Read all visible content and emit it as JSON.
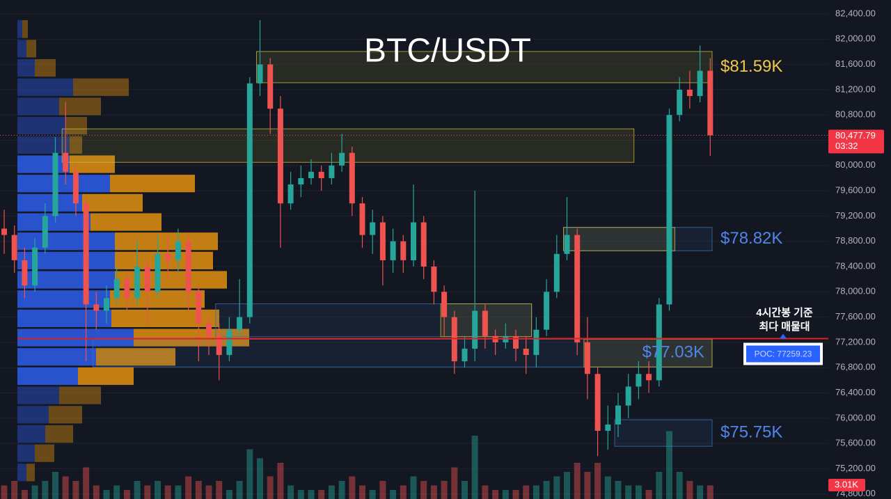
{
  "chart_data": {
    "type": "candlestick",
    "title": "BTC/USDT",
    "ohlc": [
      [
        79000,
        79300,
        78600,
        78900
      ],
      [
        78900,
        79050,
        78300,
        78500
      ],
      [
        78500,
        78700,
        77900,
        78100
      ],
      [
        78100,
        78850,
        78000,
        78700
      ],
      [
        78700,
        79400,
        78600,
        79200
      ],
      [
        79200,
        80450,
        79100,
        80200
      ],
      [
        80200,
        81000,
        79700,
        79900
      ],
      [
        79900,
        80000,
        79200,
        79400
      ],
      [
        79400,
        79500,
        76900,
        77800
      ],
      [
        77800,
        78000,
        77400,
        77700
      ],
      [
        77700,
        78100,
        77500,
        77900
      ],
      [
        77900,
        78400,
        77800,
        78200
      ],
      [
        78200,
        78300,
        77700,
        77900
      ],
      [
        77900,
        78800,
        77800,
        78400
      ],
      [
        78400,
        78500,
        77500,
        78000
      ],
      [
        78000,
        78900,
        77900,
        78600
      ],
      [
        78600,
        78900,
        78200,
        78500
      ],
      [
        78500,
        79000,
        78300,
        78800
      ],
      [
        78800,
        78900,
        77700,
        78000
      ],
      [
        78000,
        78100,
        76900,
        77500
      ],
      [
        77500,
        77600,
        77000,
        77300
      ],
      [
        77300,
        77500,
        76600,
        77000
      ],
      [
        77000,
        77600,
        76900,
        77400
      ],
      [
        77400,
        78200,
        77300,
        77600
      ],
      [
        77600,
        81400,
        77500,
        81300
      ],
      [
        81300,
        82300,
        81100,
        81600
      ],
      [
        81600,
        81700,
        80500,
        80900
      ],
      [
        80900,
        81100,
        78700,
        79400
      ],
      [
        79400,
        79900,
        79300,
        79700
      ],
      [
        79700,
        80000,
        79500,
        79800
      ],
      [
        79800,
        80100,
        79700,
        79900
      ],
      [
        79900,
        80000,
        79600,
        79800
      ],
      [
        79800,
        80200,
        79700,
        80000
      ],
      [
        80000,
        80500,
        79900,
        80200
      ],
      [
        80200,
        80300,
        79200,
        79400
      ],
      [
        79400,
        79500,
        78700,
        78900
      ],
      [
        78900,
        79300,
        78600,
        79100
      ],
      [
        79100,
        79200,
        78100,
        78500
      ],
      [
        78500,
        79000,
        78300,
        78800
      ],
      [
        78800,
        78900,
        78300,
        78500
      ],
      [
        78500,
        79700,
        78400,
        79100
      ],
      [
        79100,
        79200,
        78200,
        78400
      ],
      [
        78400,
        78500,
        77800,
        78000
      ],
      [
        78000,
        78100,
        77300,
        77600
      ],
      [
        77600,
        77700,
        76700,
        76900
      ],
      [
        76900,
        77300,
        76800,
        77100
      ],
      [
        77100,
        79600,
        76900,
        77700
      ],
      [
        77700,
        77800,
        77100,
        77300
      ],
      [
        77300,
        77400,
        77000,
        77200
      ],
      [
        77200,
        77500,
        77100,
        77300
      ],
      [
        77300,
        77400,
        76900,
        77100
      ],
      [
        77100,
        77300,
        76700,
        77000
      ],
      [
        77000,
        77600,
        76800,
        77400
      ],
      [
        77400,
        78200,
        77300,
        78000
      ],
      [
        78000,
        78900,
        77900,
        78600
      ],
      [
        78600,
        79500,
        78500,
        78900
      ],
      [
        78900,
        79000,
        77000,
        77200
      ],
      [
        77200,
        77600,
        76300,
        76700
      ],
      [
        76700,
        76800,
        75400,
        75800
      ],
      [
        75800,
        76200,
        75500,
        75900
      ],
      [
        75900,
        76400,
        75700,
        76200
      ],
      [
        76200,
        76700,
        76000,
        76500
      ],
      [
        76500,
        76900,
        76300,
        76700
      ],
      [
        76700,
        76900,
        76400,
        76600
      ],
      [
        76600,
        77900,
        76500,
        77800
      ],
      [
        77800,
        80900,
        77700,
        80800
      ],
      [
        80800,
        81400,
        80700,
        81200
      ],
      [
        81200,
        81500,
        80900,
        81100
      ],
      [
        81100,
        81900,
        81000,
        81500
      ],
      [
        81500,
        81700,
        80150,
        80477.79
      ]
    ],
    "volume": [
      3,
      4,
      2,
      3,
      4,
      6,
      5,
      4,
      7,
      3,
      2,
      3,
      2,
      4,
      3,
      4,
      3,
      3,
      5,
      4,
      3,
      4,
      2,
      4,
      11,
      9,
      5,
      8,
      3,
      2,
      2,
      2,
      3,
      4,
      5,
      3,
      2,
      4,
      2,
      3,
      5,
      4,
      3,
      4,
      7,
      4,
      14,
      3,
      2,
      2,
      2,
      3,
      3,
      4,
      5,
      6,
      8,
      6,
      8,
      5,
      4,
      3,
      3,
      2,
      6,
      15,
      6,
      4,
      3,
      3.01
    ],
    "last_volume_label": "3.01K",
    "last_price_label": "80,477.79",
    "countdown": "03:32",
    "vlim": [
      0,
      20
    ],
    "ylim": [
      74720,
      82620
    ],
    "yticks": [
      {
        "value": 82400,
        "label": "82,400.00"
      },
      {
        "value": 82000,
        "label": "82,000.00"
      },
      {
        "value": 81600,
        "label": "81,600.00"
      },
      {
        "value": 81200,
        "label": "81,200.00"
      },
      {
        "value": 80800,
        "label": "80,800.00"
      },
      {
        "value": 80400,
        "label": "80,400.00"
      },
      {
        "value": 80000,
        "label": "80,000.00"
      },
      {
        "value": 79600,
        "label": "79,600.00"
      },
      {
        "value": 79200,
        "label": "79,200.00"
      },
      {
        "value": 78800,
        "label": "78,800.00"
      },
      {
        "value": 78400,
        "label": "78,400.00"
      },
      {
        "value": 78000,
        "label": "78,000.00"
      },
      {
        "value": 77600,
        "label": "77,600.00"
      },
      {
        "value": 77200,
        "label": "77,200.00"
      },
      {
        "value": 76800,
        "label": "76,800.00"
      },
      {
        "value": 76400,
        "label": "76,400.00"
      },
      {
        "value": 76000,
        "label": "76,000.00"
      },
      {
        "value": 75600,
        "label": "75,600.00"
      },
      {
        "value": 75200,
        "label": "75,200.00"
      },
      {
        "value": 74800,
        "label": "74,800.00"
      }
    ],
    "grid": true,
    "up_color": "#26a69a",
    "down_color": "#ef5350",
    "zones": [
      {
        "low": 81310,
        "high": 81805,
        "from": 25,
        "to": 69,
        "color": "#c9b43c",
        "label": "$81.59K"
      },
      {
        "low": 80050,
        "high": 80580,
        "from": 6,
        "to": 61,
        "color": "#c9b43c"
      },
      {
        "low": 78650,
        "high": 79020,
        "from": 55,
        "to": 69,
        "color": "#3d6fb0",
        "label": "$78.82K"
      },
      {
        "low": 78650,
        "high": 79020,
        "from": 55,
        "to": 65,
        "color": "#c9b43c"
      },
      {
        "low": 77290,
        "high": 77810,
        "from": 21,
        "to": 51,
        "color": "#3d6fb0"
      },
      {
        "low": 77290,
        "high": 77810,
        "from": 43,
        "to": 51,
        "color": "#c9b43c"
      },
      {
        "low": 76810,
        "high": 77250,
        "from": 9,
        "to": 69,
        "color": "#3d6fb0",
        "label": "$77.03K"
      },
      {
        "low": 76810,
        "high": 77250,
        "from": 57,
        "to": 69,
        "color": "#c9b43c"
      },
      {
        "low": 75555,
        "high": 75975,
        "from": 60,
        "to": 69,
        "color": "#3d6fb0",
        "label": "$75.75K"
      }
    ],
    "profile": {
      "prices": [
        82160,
        81850,
        81545,
        81240,
        80935,
        80630,
        80325,
        80020,
        79715,
        79410,
        79105,
        78800,
        78495,
        78190,
        77885,
        77580,
        77275,
        76970,
        76665,
        76360,
        76055,
        75750,
        75445,
        75140
      ],
      "buy": [
        7,
        13,
        25,
        80,
        60,
        70,
        75,
        75,
        133,
        93,
        105,
        140,
        140,
        140,
        133,
        135,
        167,
        113,
        87,
        60,
        45,
        40,
        25,
        13
      ],
      "sell": [
        8,
        14,
        30,
        80,
        60,
        30,
        18,
        65,
        122,
        87,
        102,
        148,
        141,
        161,
        136,
        155,
        166,
        114,
        80,
        60,
        48,
        40,
        28,
        12
      ],
      "buy_color": "#2a56d6",
      "sell_color": "#d68a12"
    },
    "poc": {
      "value": 77259.23,
      "label": "POC: 77259.23"
    },
    "annotation": [
      "4시간봉 기준",
      "최다 매물대"
    ]
  }
}
